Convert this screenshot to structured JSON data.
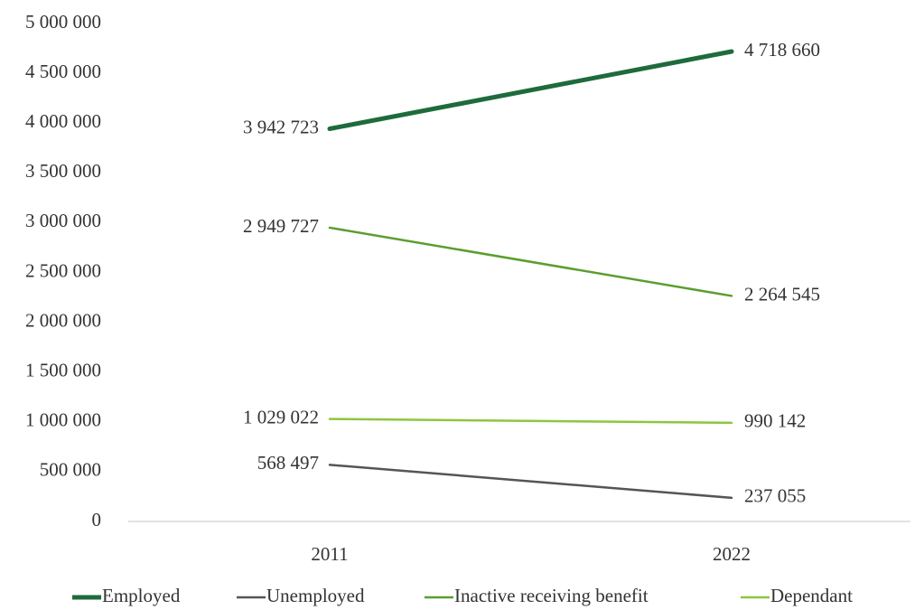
{
  "chart_data": {
    "type": "line",
    "categories": [
      "2011",
      "2022"
    ],
    "series": [
      {
        "name": "Employed",
        "color": "#1e6b3c",
        "width": 5,
        "values": [
          3942723,
          4718660
        ],
        "value_labels": [
          "3 942 723",
          "4 718 660"
        ]
      },
      {
        "name": "Unemployed",
        "color": "#555555",
        "width": 2.5,
        "values": [
          568497,
          237055
        ],
        "value_labels": [
          "568 497",
          "237 055"
        ]
      },
      {
        "name": "Inactive receiving benefit",
        "color": "#5a9e2f",
        "width": 2.5,
        "values": [
          2949727,
          2264545
        ],
        "value_labels": [
          "2 949 727",
          "2 264 545"
        ]
      },
      {
        "name": "Dependant",
        "color": "#8dc63f",
        "width": 2.5,
        "values": [
          1029022,
          990142
        ],
        "value_labels": [
          "1 029 022",
          "990 142"
        ]
      }
    ],
    "ylim": [
      0,
      5000000
    ],
    "yticks": [
      0,
      {
        "value": 500000,
        "label": "500 000"
      },
      {
        "value": 1000000,
        "label": "1 000 000"
      },
      {
        "value": 1500000,
        "label": "1 500 000"
      },
      {
        "value": 2000000,
        "label": "2 000 000"
      },
      {
        "value": 2500000,
        "label": "2 500 000"
      },
      {
        "value": 3000000,
        "label": "3 000 000"
      },
      {
        "value": 3500000,
        "label": "3 500 000"
      },
      {
        "value": 4000000,
        "label": "4 000 000"
      },
      {
        "value": 4500000,
        "label": "4 500 000"
      },
      {
        "value": 5000000,
        "label": "5 000 000"
      }
    ],
    "grid": false,
    "legend": "bottom"
  }
}
